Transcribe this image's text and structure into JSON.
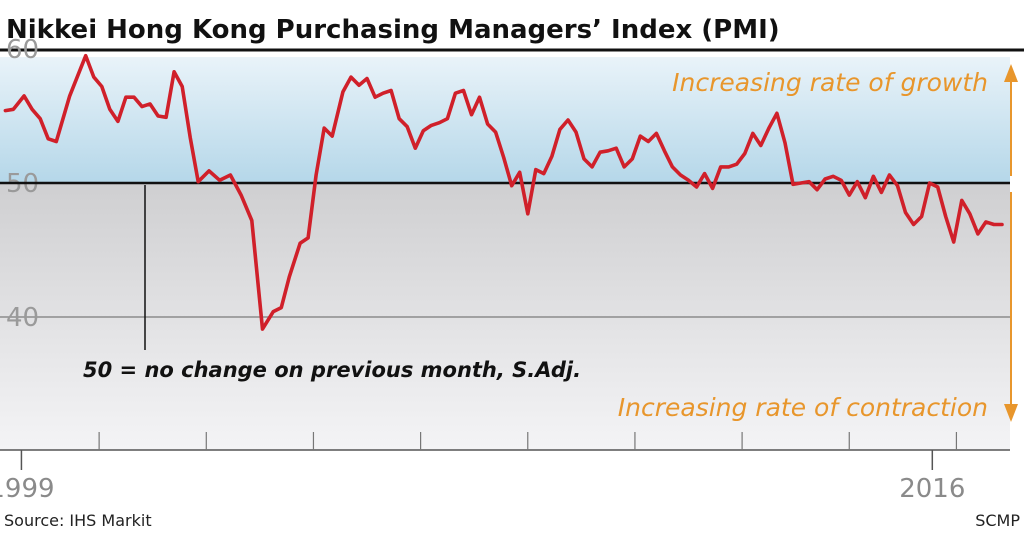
{
  "chart_data": {
    "type": "line",
    "title": "Nikkei Hong Kong Purchasing Managers’ Index (PMI)",
    "ylim": [
      35,
      62
    ],
    "yticks": [
      {
        "value": 60,
        "label": "60"
      },
      {
        "value": 50,
        "label": "50"
      },
      {
        "value": 40,
        "label": "40"
      }
    ],
    "xlim": [
      1998.6,
      2017.45
    ],
    "xticks": [
      {
        "value": 1999,
        "label": "1999"
      },
      {
        "value": 2016,
        "label": "2016"
      }
    ],
    "reference_line": 50,
    "series": [
      {
        "color": "#d0202a",
        "x": [
          1998.7,
          1998.85,
          1999.05,
          1999.2,
          1999.35,
          1999.5,
          1999.65,
          1999.9,
          2000.05,
          2000.2,
          2000.35,
          2000.5,
          2000.65,
          2000.8,
          2000.95,
          2001.1,
          2001.25,
          2001.4,
          2001.55,
          2001.7,
          2001.85,
          2002.0,
          2002.15,
          2002.3,
          2002.5,
          2002.7,
          2002.9,
          2003.1,
          2003.3,
          2003.5,
          2003.7,
          2003.85,
          2004.0,
          2004.2,
          2004.35,
          2004.5,
          2004.65,
          2004.8,
          2005.0,
          2005.15,
          2005.3,
          2005.45,
          2005.6,
          2005.75,
          2005.9,
          2006.05,
          2006.2,
          2006.35,
          2006.5,
          2006.65,
          2006.8,
          2006.95,
          2007.1,
          2007.25,
          2007.4,
          2007.55,
          2007.7,
          2007.85,
          2008.0,
          2008.15,
          2008.3,
          2008.45,
          2008.6,
          2008.75,
          2008.9,
          2009.05,
          2009.2,
          2009.35,
          2009.5,
          2009.65,
          2009.8,
          2009.95,
          2010.1,
          2010.25,
          2010.4,
          2010.55,
          2010.7,
          2010.85,
          2011.0,
          2011.15,
          2011.3,
          2011.45,
          2011.6,
          2011.75,
          2011.9,
          2012.05,
          2012.2,
          2012.35,
          2012.5,
          2012.65,
          2012.8,
          2012.95,
          2013.1,
          2013.25,
          2013.4,
          2013.55,
          2013.7,
          2013.85,
          2014.0,
          2014.15,
          2014.3,
          2014.45,
          2014.6,
          2014.75,
          2014.9,
          2015.05,
          2015.2,
          2015.35,
          2015.5,
          2015.65,
          2015.8,
          2015.95,
          2016.1,
          2016.25,
          2016.4,
          2016.55,
          2016.7,
          2016.85,
          2017.0,
          2017.15,
          2017.3
        ],
        "values": [
          55.4,
          55.5,
          56.5,
          55.5,
          54.8,
          53.3,
          53.1,
          56.5,
          58.0,
          59.5,
          57.9,
          57.2,
          55.5,
          54.6,
          56.4,
          56.4,
          55.7,
          55.9,
          55.0,
          54.9,
          58.3,
          57.2,
          53.4,
          50.1,
          50.9,
          50.2,
          50.6,
          49.1,
          47.2,
          39.1,
          40.4,
          40.7,
          43.0,
          45.5,
          45.9,
          50.6,
          54.1,
          53.5,
          56.8,
          57.9,
          57.3,
          57.8,
          56.4,
          56.7,
          56.9,
          54.8,
          54.2,
          52.6,
          53.9,
          54.3,
          54.5,
          54.8,
          56.7,
          56.9,
          55.1,
          56.4,
          54.4,
          53.8,
          51.9,
          49.8,
          50.8,
          47.7,
          51.0,
          50.7,
          52.0,
          54.0,
          54.7,
          53.8,
          51.8,
          51.2,
          52.3,
          52.4,
          52.6,
          51.2,
          51.8,
          53.5,
          53.1,
          53.7,
          52.4,
          51.2,
          50.6,
          50.2,
          49.7,
          50.7,
          49.6,
          51.2,
          51.2,
          51.4,
          52.2,
          53.7,
          52.8,
          54.1,
          55.2,
          53.0,
          49.9,
          50.0,
          50.1,
          49.5,
          50.3,
          50.5,
          50.2,
          49.1,
          50.1,
          48.9,
          50.5,
          49.3,
          50.6,
          49.8,
          47.8,
          46.9,
          47.5,
          50.0,
          49.7,
          47.5,
          45.6,
          48.7,
          47.7,
          46.2,
          47.1,
          46.9,
          46.9
        ]
      }
    ],
    "annotations": {
      "growth": "Increasing rate of growth",
      "contraction": "Increasing rate of contraction",
      "note": "50 = no change on previous month, S.Adj."
    },
    "source": "Source: IHS Markit",
    "credit": "SCMP"
  },
  "colors": {
    "line": "#d0202a",
    "arrow": "#e8962c",
    "growth_zone_top": "#b5d7e9",
    "contraction_zone_top": "#cfcfd1"
  }
}
